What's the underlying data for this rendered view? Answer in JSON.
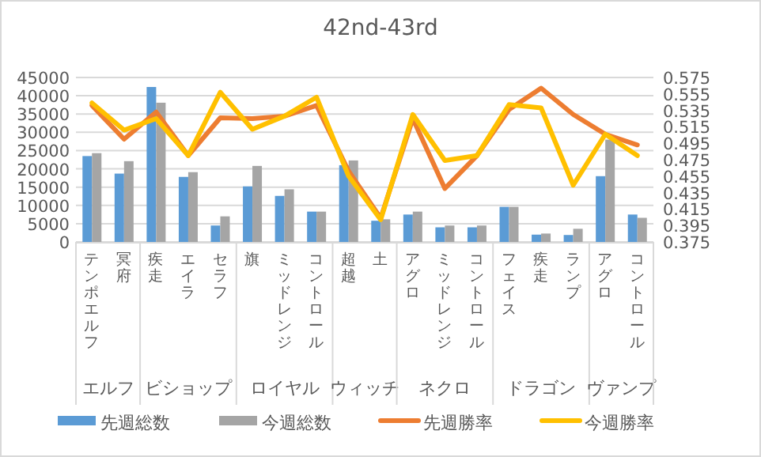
{
  "chart_data": {
    "type": "bar",
    "title": "42nd-43rd",
    "categories": [
      "テンポエルフ",
      "冥府",
      "疾走",
      "エイラ",
      "セラフ",
      "旗",
      "ミッドレンジ",
      "コントロール",
      "超越",
      "土",
      "アグロ",
      "ミッドレンジ",
      "コントロール",
      "フェイス",
      "疾走",
      "ランプ",
      "アグロ",
      "コントロール"
    ],
    "series": [
      {
        "name": "先週総数",
        "color": "#5b9bd5",
        "values": [
          23500,
          18700,
          42400,
          17800,
          4500,
          15200,
          12600,
          8300,
          21000,
          5800,
          7500,
          4000,
          4000,
          9600,
          2000,
          1900,
          18000,
          7500
        ]
      },
      {
        "name": "今週総数",
        "color": "#a5a5a5",
        "values": [
          24300,
          22100,
          38100,
          19100,
          7000,
          20800,
          14400,
          8300,
          22300,
          6200,
          8300,
          4500,
          4500,
          9600,
          2300,
          3600,
          28000,
          6600
        ]
      },
      {
        "name": "先週勝率",
        "type": "line",
        "axis": "y2",
        "color": "#ed7d31",
        "values": [
          0.541,
          0.5,
          0.533,
          0.48,
          0.526,
          0.525,
          0.528,
          0.541,
          0.461,
          0.404,
          0.525,
          0.44,
          0.48,
          0.536,
          0.562,
          0.53,
          0.506,
          0.493
        ]
      },
      {
        "name": "今週勝率",
        "type": "line",
        "axis": "y2",
        "color": "#ffc000",
        "values": [
          0.544,
          0.511,
          0.525,
          0.48,
          0.557,
          0.512,
          0.528,
          0.551,
          0.455,
          0.402,
          0.53,
          0.474,
          0.48,
          0.542,
          0.538,
          0.444,
          0.506,
          0.48
        ]
      }
    ],
    "ylim": [
      0,
      45000
    ],
    "yticks": [
      0,
      5000,
      10000,
      15000,
      20000,
      25000,
      30000,
      35000,
      40000,
      45000
    ],
    "y2lim": [
      0.375,
      0.575
    ],
    "y2ticks": [
      0.375,
      0.395,
      0.415,
      0.435,
      0.455,
      0.475,
      0.495,
      0.515,
      0.535,
      0.555,
      0.575
    ],
    "grid": "y",
    "legend": "bottom",
    "annotations": [
      "エルフ",
      "ビショップ",
      "ロイヤル",
      "ウィッチ",
      "ネクロ",
      "ドラゴン",
      "ヴァンプ"
    ]
  }
}
